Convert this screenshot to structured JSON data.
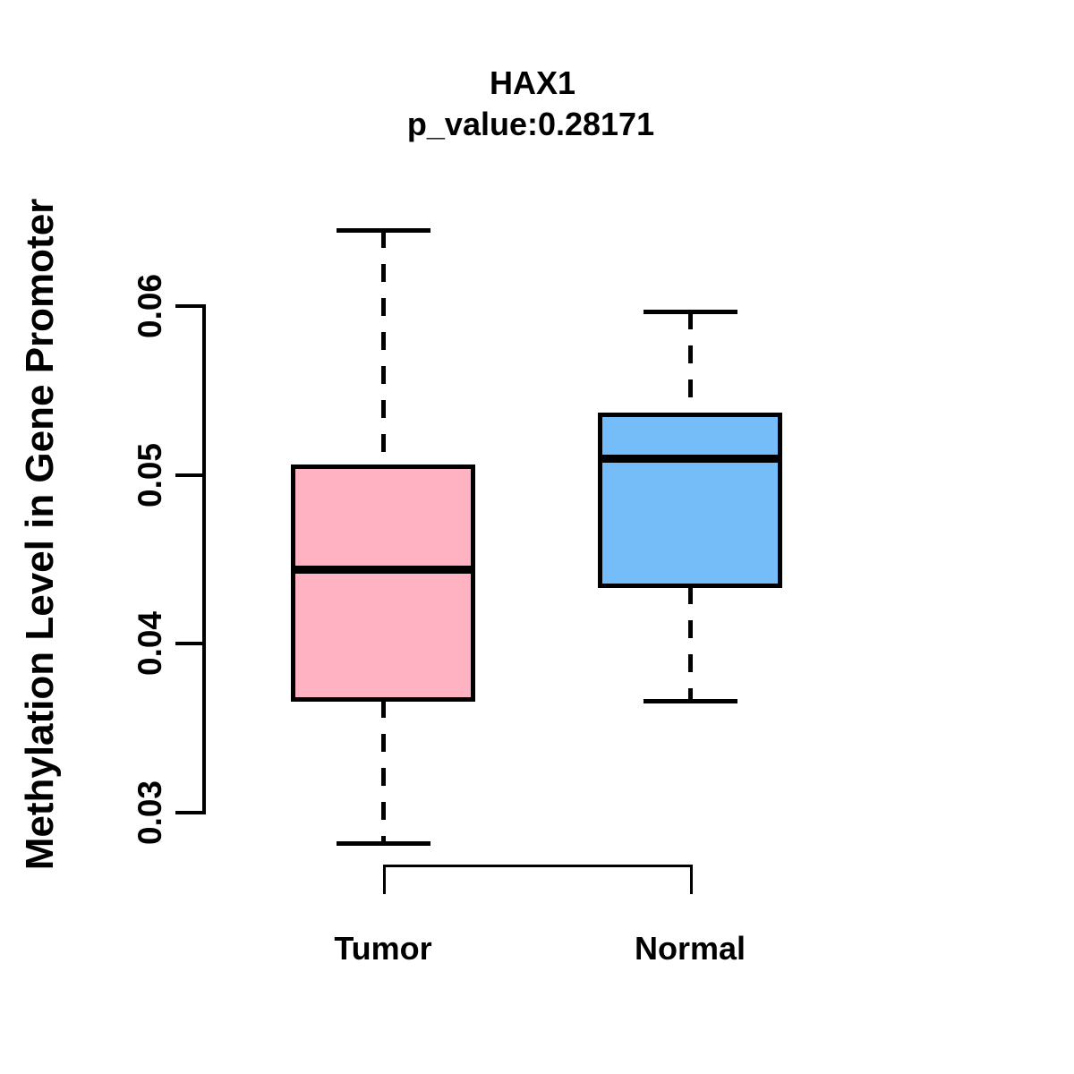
{
  "chart_data": {
    "type": "boxplot",
    "title": "HAX1",
    "subtitle": "p_value:0.28171",
    "ylabel": "Methylation Level in Gene Promoter",
    "xlabel": "",
    "yticks": [
      0.03,
      0.04,
      0.05,
      0.06
    ],
    "ytick_labels": [
      "0.03",
      "0.04",
      "0.05",
      "0.06"
    ],
    "ylim": [
      0.028,
      0.065
    ],
    "grid": false,
    "legend": "none",
    "groups": [
      {
        "label": "Tumor",
        "color": "#FFB3C2",
        "whisker_low": 0.0282,
        "q1": 0.0367,
        "median": 0.0444,
        "q3": 0.0505,
        "whisker_high": 0.0645
      },
      {
        "label": "Normal",
        "color": "#75BDF8",
        "whisker_low": 0.0366,
        "q1": 0.0434,
        "median": 0.051,
        "q3": 0.0536,
        "whisker_high": 0.0597
      }
    ],
    "box_border_color": "#000000",
    "background": "#FFFFFF"
  }
}
